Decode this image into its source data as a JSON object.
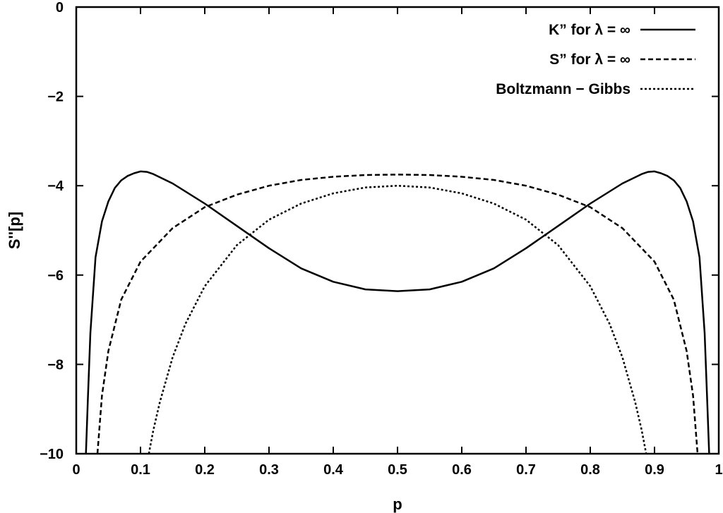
{
  "chart_data": {
    "type": "line",
    "xlabel": "p",
    "ylabel": "S''[p]",
    "xlim": [
      0,
      1
    ],
    "ylim": [
      -10,
      0
    ],
    "x_ticks": [
      0,
      0.1,
      0.2,
      0.3,
      0.4,
      0.5,
      0.6,
      0.7,
      0.8,
      0.9,
      1
    ],
    "x_tick_labels": [
      "0",
      "0.1",
      "0.2",
      "0.3",
      "0.4",
      "0.5",
      "0.6",
      "0.7",
      "0.8",
      "0.9",
      "1"
    ],
    "y_ticks": [
      0,
      -2,
      -4,
      -6,
      -8,
      -10
    ],
    "y_tick_labels": [
      "0",
      "−2",
      "−4",
      "−6",
      "−8",
      "−10"
    ],
    "grid": false,
    "legend_position": "top-right",
    "series": [
      {
        "name": "K” for λ = ∞",
        "style": "solid",
        "x": [
          0.015,
          0.018,
          0.022,
          0.03,
          0.04,
          0.05,
          0.06,
          0.07,
          0.08,
          0.09,
          0.1,
          0.11,
          0.12,
          0.15,
          0.2,
          0.25,
          0.3,
          0.35,
          0.4,
          0.45,
          0.5,
          0.55,
          0.6,
          0.65,
          0.7,
          0.75,
          0.8,
          0.85,
          0.88,
          0.89,
          0.9,
          0.91,
          0.92,
          0.93,
          0.94,
          0.95,
          0.96,
          0.97,
          0.978,
          0.982,
          0.985
        ],
        "y": [
          -10,
          -8.8,
          -7.3,
          -5.6,
          -4.8,
          -4.35,
          -4.05,
          -3.88,
          -3.78,
          -3.72,
          -3.68,
          -3.69,
          -3.74,
          -3.95,
          -4.4,
          -4.9,
          -5.4,
          -5.85,
          -6.15,
          -6.32,
          -6.36,
          -6.32,
          -6.15,
          -5.85,
          -5.4,
          -4.9,
          -4.4,
          -3.95,
          -3.74,
          -3.69,
          -3.68,
          -3.72,
          -3.78,
          -3.88,
          -4.05,
          -4.35,
          -4.8,
          -5.6,
          -7.3,
          -8.8,
          -10
        ]
      },
      {
        "name": "S” for λ = ∞",
        "style": "dashed",
        "x": [
          0.033,
          0.04,
          0.05,
          0.07,
          0.1,
          0.15,
          0.2,
          0.25,
          0.3,
          0.35,
          0.4,
          0.45,
          0.5,
          0.55,
          0.6,
          0.65,
          0.7,
          0.75,
          0.8,
          0.85,
          0.9,
          0.93,
          0.95,
          0.96,
          0.967
        ],
        "y": [
          -10,
          -8.7,
          -7.7,
          -6.55,
          -5.7,
          -4.95,
          -4.48,
          -4.2,
          -4.0,
          -3.87,
          -3.8,
          -3.76,
          -3.75,
          -3.76,
          -3.8,
          -3.87,
          -4.0,
          -4.2,
          -4.48,
          -4.95,
          -5.7,
          -6.55,
          -7.7,
          -8.7,
          -10
        ]
      },
      {
        "name": "Boltzmann − Gibbs",
        "style": "dotted",
        "x": [
          0.113,
          0.12,
          0.13,
          0.15,
          0.17,
          0.2,
          0.25,
          0.3,
          0.35,
          0.4,
          0.45,
          0.5,
          0.55,
          0.6,
          0.65,
          0.7,
          0.75,
          0.8,
          0.83,
          0.85,
          0.87,
          0.88,
          0.887
        ],
        "y": [
          -10,
          -9.47,
          -8.85,
          -7.84,
          -7.09,
          -6.25,
          -5.33,
          -4.76,
          -4.4,
          -4.17,
          -4.04,
          -4.0,
          -4.04,
          -4.17,
          -4.4,
          -4.76,
          -5.33,
          -6.25,
          -7.09,
          -7.84,
          -8.85,
          -9.47,
          -10
        ]
      }
    ]
  }
}
